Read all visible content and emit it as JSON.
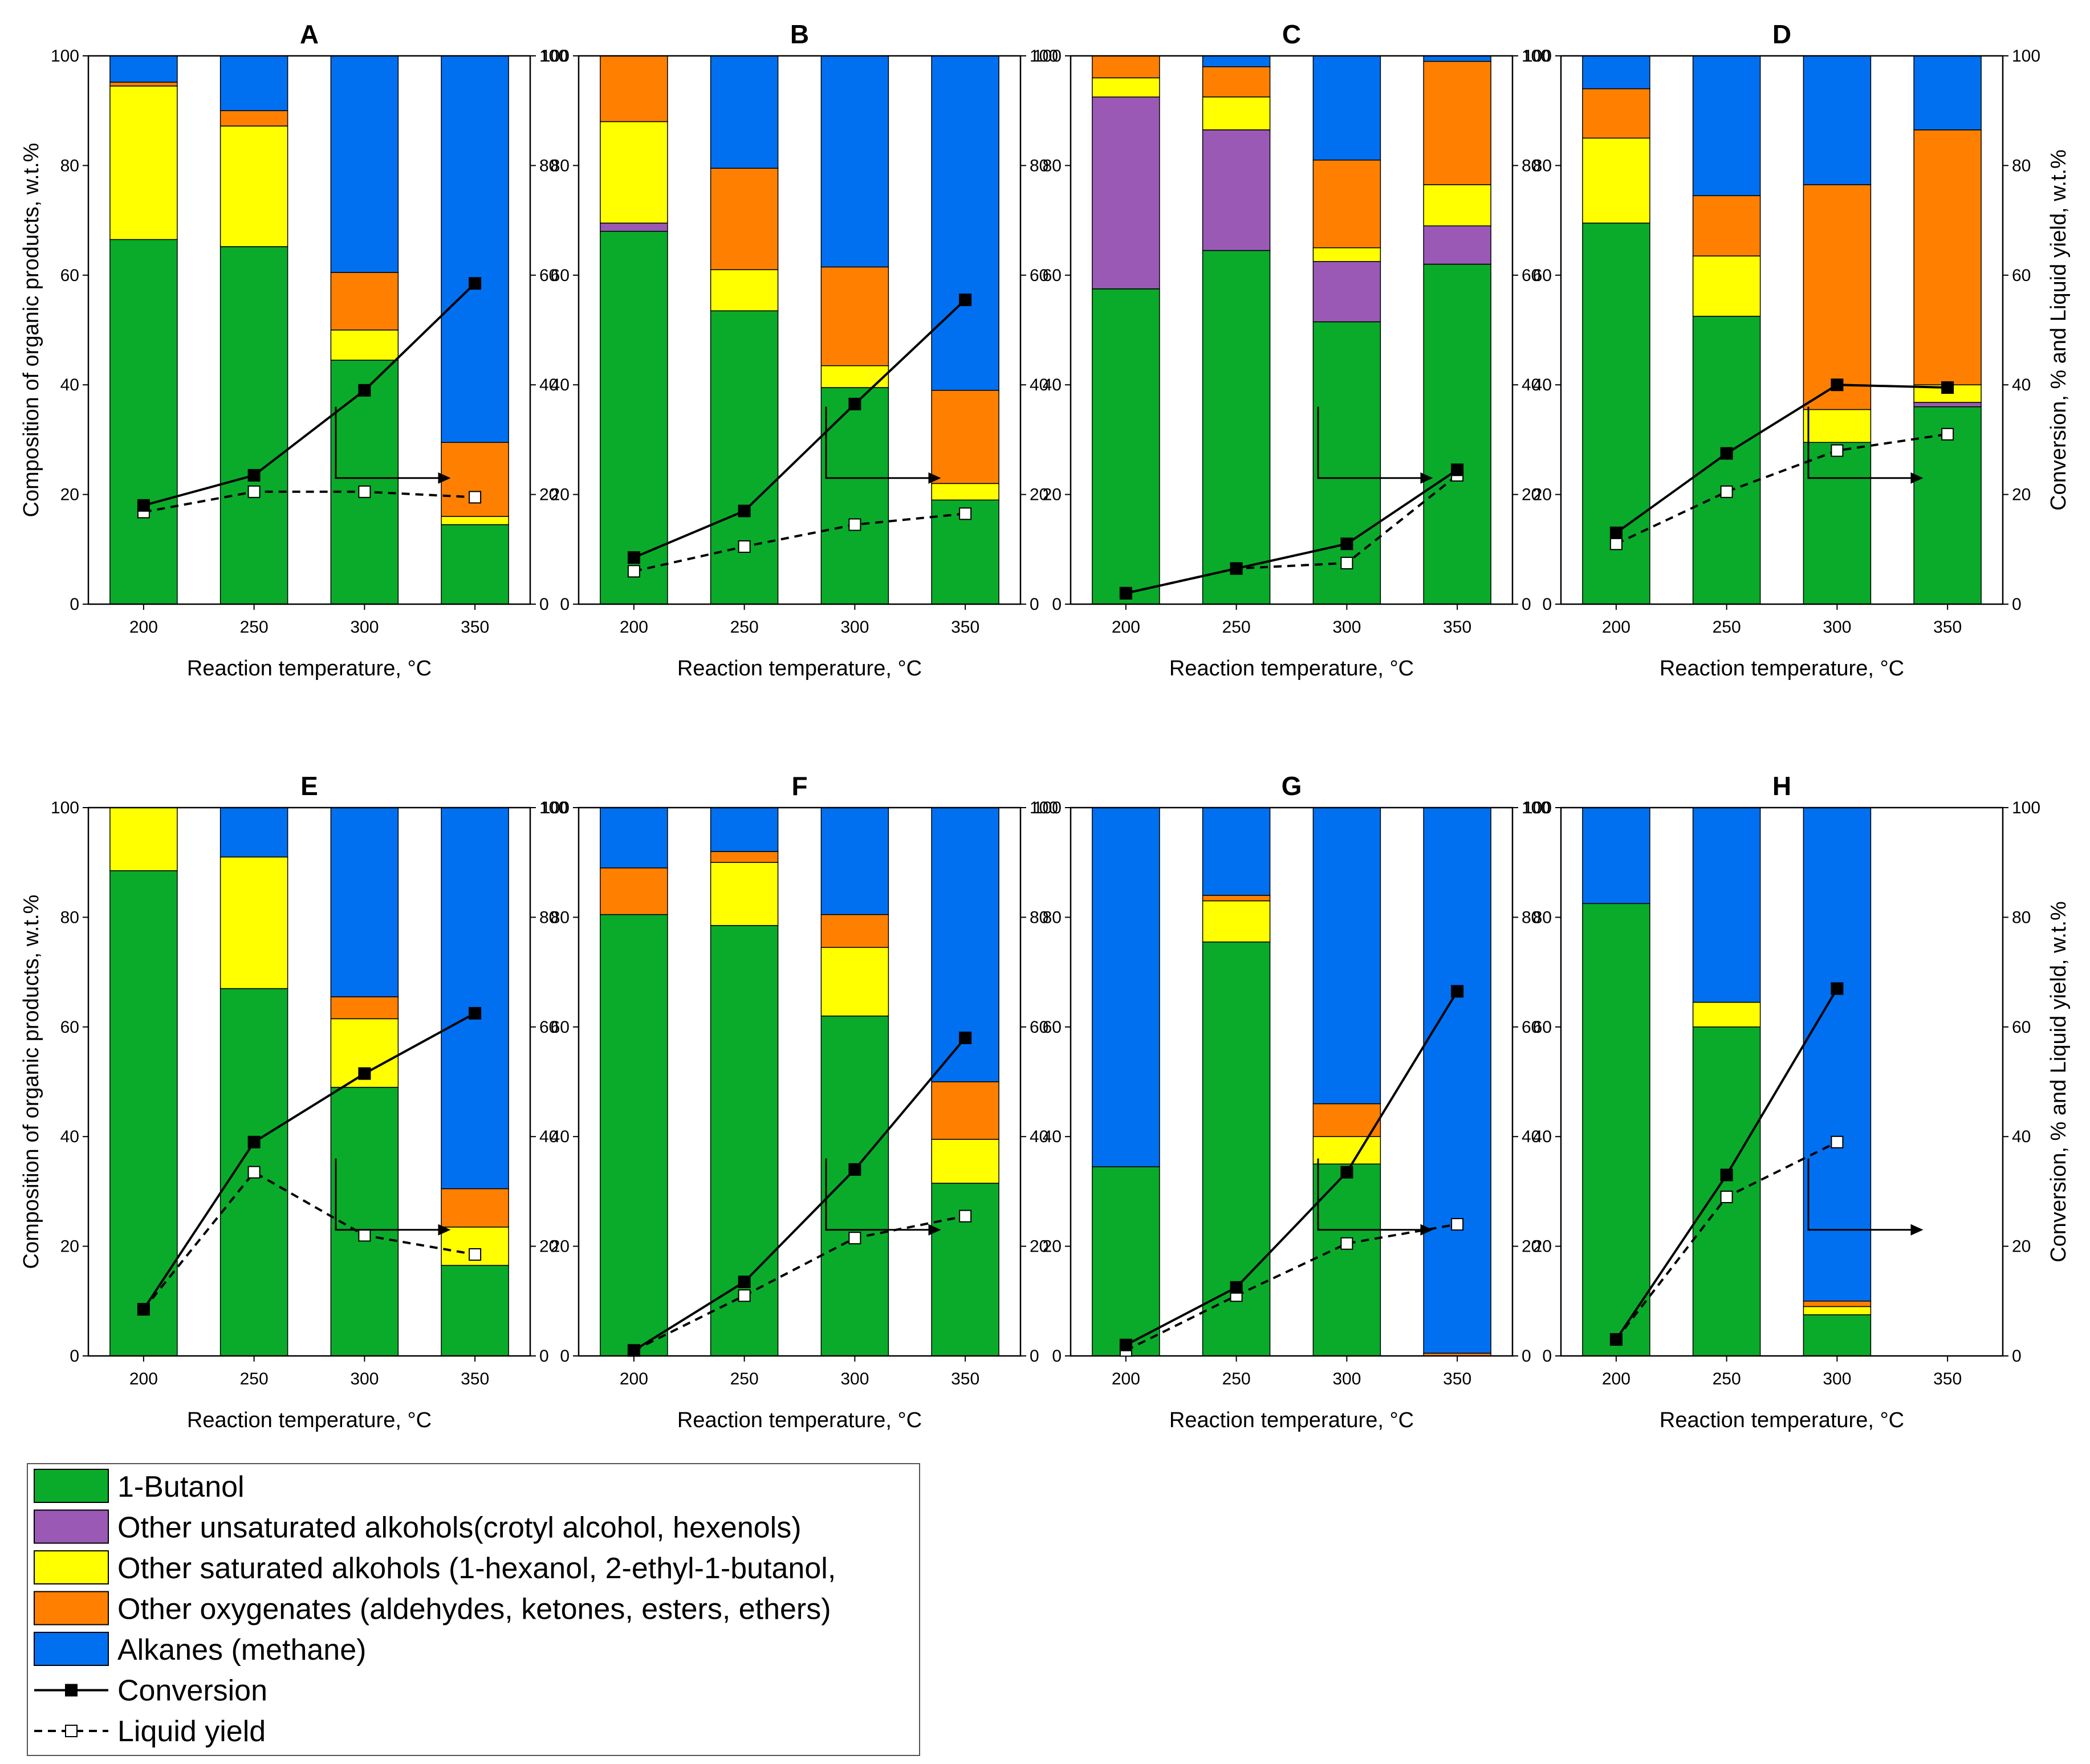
{
  "colors": {
    "butanol": "#0aab2a",
    "unsat_alcohols": "#9b59b6",
    "sat_alcohols": "#ffff00",
    "oxygenates": "#ff8000",
    "alkanes": "#0070f0"
  },
  "chart_data": {
    "type": "bar",
    "stacked": true,
    "categories": [
      "200",
      "250",
      "300",
      "350"
    ],
    "xlabel": "Reaction temperature, °C",
    "ylabel": "Composition of organic products, w.t.%",
    "y2label": "Conversion, % and Liquid yield, w.t.%",
    "ylim": [
      0,
      100
    ],
    "y2lim": [
      0,
      100
    ],
    "yticks": [
      "0",
      "20",
      "40",
      "60",
      "80",
      "100"
    ],
    "legend": [
      {
        "key": "butanol",
        "label": "1-Butanol"
      },
      {
        "key": "unsat_alcohols",
        "label": "Other unsaturated alkohols(crotyl alcohol, hexenols)"
      },
      {
        "key": "sat_alcohols",
        "label": "Other saturated alkohols (1-hexanol, 2-ethyl-1-butanol,"
      },
      {
        "key": "oxygenates",
        "label": "Other oxygenates (aldehydes, ketones, esters, ethers)"
      },
      {
        "key": "alkanes",
        "label": "Alkanes (methane)"
      },
      {
        "key": "conversion",
        "label": "Conversion"
      },
      {
        "key": "liquid_yield",
        "label": "Liquid yield"
      }
    ],
    "panels": [
      {
        "title": "A",
        "stacks": [
          {
            "butanol": 66.5,
            "unsat_alcohols": 0,
            "sat_alcohols": 28,
            "oxygenates": 0.7,
            "alkanes": 4.8
          },
          {
            "butanol": 65.2,
            "unsat_alcohols": 0,
            "sat_alcohols": 22,
            "oxygenates": 2.8,
            "alkanes": 10
          },
          {
            "butanol": 44.5,
            "unsat_alcohols": 0,
            "sat_alcohols": 5.5,
            "oxygenates": 10.5,
            "alkanes": 39.5
          },
          {
            "butanol": 14.5,
            "unsat_alcohols": 0,
            "sat_alcohols": 1.5,
            "oxygenates": 13.5,
            "alkanes": 70.5
          }
        ],
        "conversion": [
          18,
          23.5,
          39,
          58.5
        ],
        "liquid_yield": [
          16.8,
          20.5,
          20.5,
          19.5
        ]
      },
      {
        "title": "B",
        "stacks": [
          {
            "butanol": 68,
            "unsat_alcohols": 1.5,
            "sat_alcohols": 18.5,
            "oxygenates": 12,
            "alkanes": 0
          },
          {
            "butanol": 53.5,
            "unsat_alcohols": 0,
            "sat_alcohols": 7.5,
            "oxygenates": 18.5,
            "alkanes": 20.5
          },
          {
            "butanol": 39.5,
            "unsat_alcohols": 0,
            "sat_alcohols": 4,
            "oxygenates": 18,
            "alkanes": 38.5
          },
          {
            "butanol": 19,
            "unsat_alcohols": 0,
            "sat_alcohols": 3,
            "oxygenates": 17,
            "alkanes": 61
          }
        ],
        "conversion": [
          8.5,
          17,
          36.5,
          55.5
        ],
        "liquid_yield": [
          6,
          10.5,
          14.5,
          16.5
        ]
      },
      {
        "title": "C",
        "stacks": [
          {
            "butanol": 57.5,
            "unsat_alcohols": 35,
            "sat_alcohols": 3.5,
            "oxygenates": 4,
            "alkanes": 0
          },
          {
            "butanol": 64.5,
            "unsat_alcohols": 22,
            "sat_alcohols": 6,
            "oxygenates": 5.5,
            "alkanes": 2
          },
          {
            "butanol": 51.5,
            "unsat_alcohols": 11,
            "sat_alcohols": 2.5,
            "oxygenates": 16,
            "alkanes": 19
          },
          {
            "butanol": 62,
            "unsat_alcohols": 7,
            "sat_alcohols": 7.5,
            "oxygenates": 22.5,
            "alkanes": 1
          }
        ],
        "conversion": [
          2,
          6.5,
          11,
          24.5
        ],
        "liquid_yield": [
          2,
          6.5,
          7.5,
          23.5
        ]
      },
      {
        "title": "D",
        "stacks": [
          {
            "butanol": 69.5,
            "unsat_alcohols": 0,
            "sat_alcohols": 15.5,
            "oxygenates": 9,
            "alkanes": 6
          },
          {
            "butanol": 52.5,
            "unsat_alcohols": 0,
            "sat_alcohols": 11,
            "oxygenates": 11,
            "alkanes": 25.5
          },
          {
            "butanol": 29.5,
            "unsat_alcohols": 0,
            "sat_alcohols": 6,
            "oxygenates": 41,
            "alkanes": 23.5
          },
          {
            "butanol": 36,
            "unsat_alcohols": 0.8,
            "sat_alcohols": 3.2,
            "oxygenates": 46.5,
            "alkanes": 13.5
          }
        ],
        "conversion": [
          13,
          27.5,
          40,
          39.5
        ],
        "liquid_yield": [
          11,
          20.5,
          28,
          31
        ]
      },
      {
        "title": "E",
        "stacks": [
          {
            "butanol": 88.5,
            "unsat_alcohols": 0,
            "sat_alcohols": 11.5,
            "oxygenates": 0,
            "alkanes": 0
          },
          {
            "butanol": 67,
            "unsat_alcohols": 0,
            "sat_alcohols": 24,
            "oxygenates": 0,
            "alkanes": 9
          },
          {
            "butanol": 49,
            "unsat_alcohols": 0,
            "sat_alcohols": 12.5,
            "oxygenates": 4,
            "alkanes": 34.5
          },
          {
            "butanol": 16.5,
            "unsat_alcohols": 0,
            "sat_alcohols": 7,
            "oxygenates": 7,
            "alkanes": 69.5
          }
        ],
        "conversion": [
          8.5,
          39,
          51.5,
          62.5
        ],
        "liquid_yield": [
          8.5,
          33.5,
          22,
          18.5
        ]
      },
      {
        "title": "F",
        "stacks": [
          {
            "butanol": 80.5,
            "unsat_alcohols": 0,
            "sat_alcohols": 0,
            "oxygenates": 8.5,
            "alkanes": 11
          },
          {
            "butanol": 78.5,
            "unsat_alcohols": 0,
            "sat_alcohols": 11.5,
            "oxygenates": 2,
            "alkanes": 8
          },
          {
            "butanol": 62,
            "unsat_alcohols": 0,
            "sat_alcohols": 12.5,
            "oxygenates": 6,
            "alkanes": 19.5
          },
          {
            "butanol": 31.5,
            "unsat_alcohols": 0,
            "sat_alcohols": 8,
            "oxygenates": 10.5,
            "alkanes": 50
          }
        ],
        "conversion": [
          1,
          13.5,
          34,
          58
        ],
        "liquid_yield": [
          1,
          11,
          21.5,
          25.5
        ]
      },
      {
        "title": "G",
        "stacks": [
          {
            "butanol": 34.5,
            "unsat_alcohols": 0,
            "sat_alcohols": 0,
            "oxygenates": 0,
            "alkanes": 65.5
          },
          {
            "butanol": 75.5,
            "unsat_alcohols": 0,
            "sat_alcohols": 7.5,
            "oxygenates": 1,
            "alkanes": 16
          },
          {
            "butanol": 35,
            "unsat_alcohols": 0,
            "sat_alcohols": 5,
            "oxygenates": 6,
            "alkanes": 54
          },
          {
            "butanol": 0,
            "unsat_alcohols": 0,
            "sat_alcohols": 0,
            "oxygenates": 0.5,
            "alkanes": 99.5
          }
        ],
        "conversion": [
          2,
          12.5,
          33.5,
          66.5
        ],
        "liquid_yield": [
          1,
          11,
          20.5,
          24
        ]
      },
      {
        "title": "H",
        "stacks": [
          {
            "butanol": 82.5,
            "unsat_alcohols": 0,
            "sat_alcohols": 0,
            "oxygenates": 0,
            "alkanes": 17.5
          },
          {
            "butanol": 60,
            "unsat_alcohols": 0,
            "sat_alcohols": 4.5,
            "oxygenates": 0,
            "alkanes": 35.5
          },
          {
            "butanol": 7.5,
            "unsat_alcohols": 0,
            "sat_alcohols": 1.5,
            "oxygenates": 1,
            "alkanes": 90
          },
          null
        ],
        "conversion": [
          3,
          33,
          67,
          null
        ],
        "liquid_yield": [
          3,
          29,
          39,
          null
        ]
      }
    ]
  }
}
